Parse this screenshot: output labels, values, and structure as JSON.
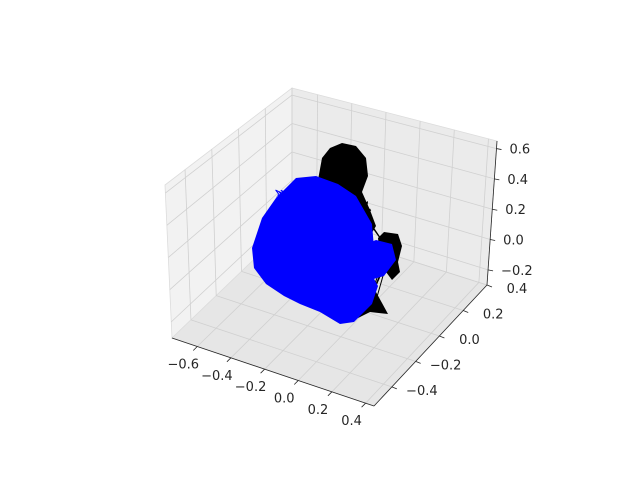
{
  "chart_data": {
    "type": "scatter",
    "projection": "3d",
    "title": "",
    "xlabel": "",
    "ylabel": "",
    "zlabel": "",
    "grid": true,
    "legend": "none",
    "xlim": [
      -0.75,
      0.45
    ],
    "ylim": [
      -0.55,
      0.4
    ],
    "zlim": [
      -0.3,
      0.65
    ],
    "x_ticks": [
      "−0.6",
      "−0.4",
      "−0.2",
      "0.0",
      "0.2",
      "0.4"
    ],
    "y_ticks": [
      "−0.4",
      "−0.2",
      "0.0",
      "0.2",
      "0.4"
    ],
    "z_ticks": [
      "−0.2",
      "0.0",
      "0.2",
      "0.4",
      "0.6"
    ],
    "series": [
      {
        "color": "#000000",
        "style": "dense trajectory cloud (rear lobe)"
      },
      {
        "color": "#0000ff",
        "style": "dense trajectory cloud (front lobe)"
      }
    ]
  }
}
